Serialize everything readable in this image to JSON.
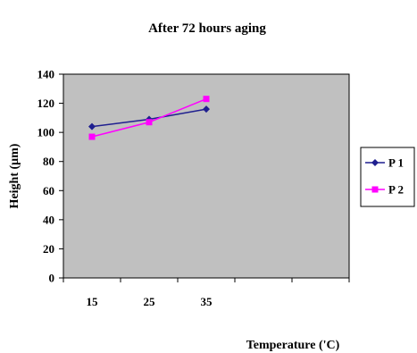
{
  "chart_data": {
    "type": "line",
    "title": "After 72 hours aging",
    "xlabel": "Temperature ('C)",
    "ylabel": "Height (μm)",
    "x_ticks": [
      "15",
      "25",
      "35"
    ],
    "x_positions": 5,
    "ylim": [
      0,
      140
    ],
    "y_ticks": [
      "0",
      "20",
      "40",
      "60",
      "80",
      "100",
      "120",
      "140"
    ],
    "y_tick_values": [
      0,
      20,
      40,
      60,
      80,
      100,
      120,
      140
    ],
    "plot_background": "#c0c0c0",
    "grid": false,
    "legend_position": "right",
    "series": [
      {
        "name": "P 1",
        "color": "#1f1f8f",
        "marker": "diamond",
        "values": [
          104,
          109,
          116
        ]
      },
      {
        "name": "P 2",
        "color": "#ff00ff",
        "marker": "square",
        "values": [
          97,
          107,
          123
        ]
      }
    ]
  }
}
